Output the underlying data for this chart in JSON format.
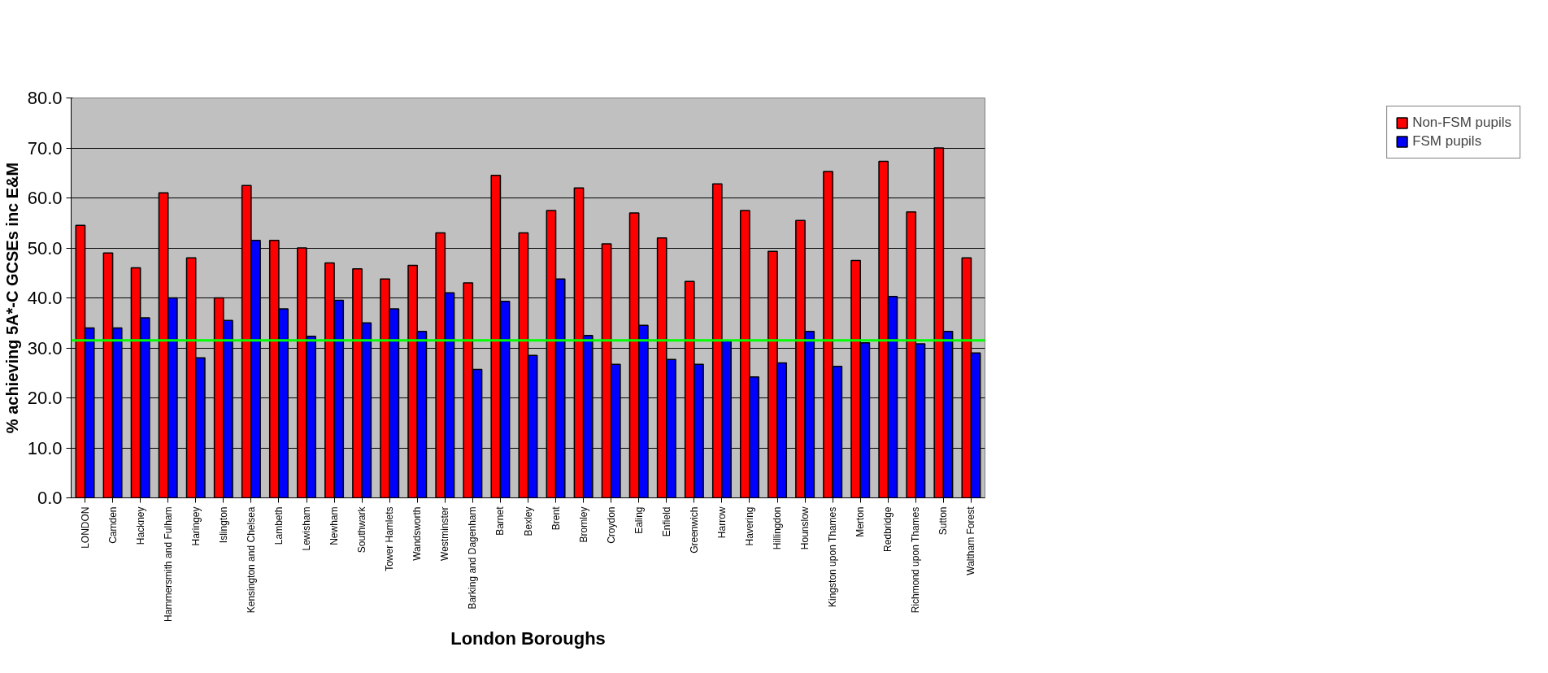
{
  "chart_data": {
    "type": "bar",
    "xlabel": "London Boroughs",
    "ylabel": "% achieving 5A*-C GCSEs inc E&M",
    "categories": [
      "LONDON",
      "Camden",
      "Hackney",
      "Hammersmith and Fulham",
      "Haringey",
      "Islington",
      "Kensington and Chelsea",
      "Lambeth",
      "Lewisham",
      "Newham",
      "Southwark",
      "Tower Hamlets",
      "Wandsworth",
      "Westminster",
      "Barking and Dagenham",
      "Barnet",
      "Bexley",
      "Brent",
      "Bromley",
      "Croydon",
      "Ealing",
      "Enfield",
      "Greenwich",
      "Harrow",
      "Havering",
      "Hillingdon",
      "Hounslow",
      "Kingston upon Thames",
      "Merton",
      "Redbridge",
      "Richmond upon Thames",
      "Sutton",
      "Waltham Forest"
    ],
    "series": [
      {
        "name": "Non-FSM pupils",
        "color": "#ff0000",
        "values": [
          54.5,
          49,
          46,
          61,
          48,
          40,
          62.5,
          51.5,
          50,
          47,
          45.8,
          43.8,
          46.5,
          53,
          43,
          64.5,
          53,
          57.5,
          62,
          50.8,
          57,
          52,
          43.3,
          62.8,
          57.5,
          49.3,
          55.5,
          65.3,
          47.5,
          67.3,
          57.2,
          70,
          48
        ]
      },
      {
        "name": "FSM pupils",
        "color": "#0000ff",
        "values": [
          34,
          34,
          36,
          40,
          28,
          35.5,
          51.5,
          37.8,
          32.3,
          39.5,
          35,
          37.8,
          33.3,
          41,
          25.7,
          39.3,
          28.5,
          43.8,
          32.5,
          26.7,
          34.5,
          27.7,
          26.7,
          31.5,
          24.2,
          27,
          33.3,
          26.3,
          31,
          40.3,
          30.8,
          33.3,
          29
        ]
      }
    ],
    "ylim": [
      0,
      80
    ],
    "yticks": [
      {
        "value": 0,
        "label": "0.0"
      },
      {
        "value": 10,
        "label": "10.0"
      },
      {
        "value": 20,
        "label": "20.0"
      },
      {
        "value": 30,
        "label": "30.0"
      },
      {
        "value": 40,
        "label": "40.0"
      },
      {
        "value": 50,
        "label": "50.0"
      },
      {
        "value": 60,
        "label": "60.0"
      },
      {
        "value": 70,
        "label": "70.0"
      },
      {
        "value": 80,
        "label": "80.0"
      }
    ],
    "grid": "y",
    "legend": "right",
    "ref_lines": [
      {
        "axis": "y",
        "value": 31.5,
        "color": "#00ff00"
      }
    ]
  }
}
